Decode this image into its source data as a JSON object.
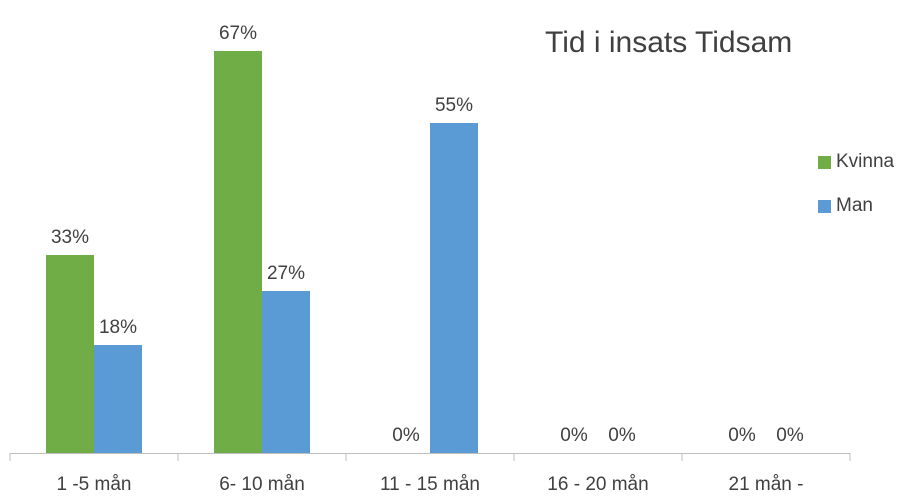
{
  "chart_data": {
    "type": "bar",
    "title": "Tid i insats Tidsam",
    "categories": [
      "1 -5 mån",
      "6- 10 mån",
      "11 - 15 mån",
      "16 - 20 mån",
      "21  mån -"
    ],
    "series": [
      {
        "name": "Kvinna",
        "values": [
          33,
          67,
          0,
          0,
          0
        ],
        "labels": [
          "33%",
          "67%",
          "0%",
          "0%",
          "0%"
        ],
        "color": "#70AD47"
      },
      {
        "name": "Man",
        "values": [
          18,
          27,
          55,
          0,
          0
        ],
        "labels": [
          "18%",
          "27%",
          "55%",
          "0%",
          "0%"
        ],
        "color": "#5B9BD5"
      }
    ],
    "ylim": [
      0,
      75
    ],
    "grid": false,
    "legend": "right"
  }
}
